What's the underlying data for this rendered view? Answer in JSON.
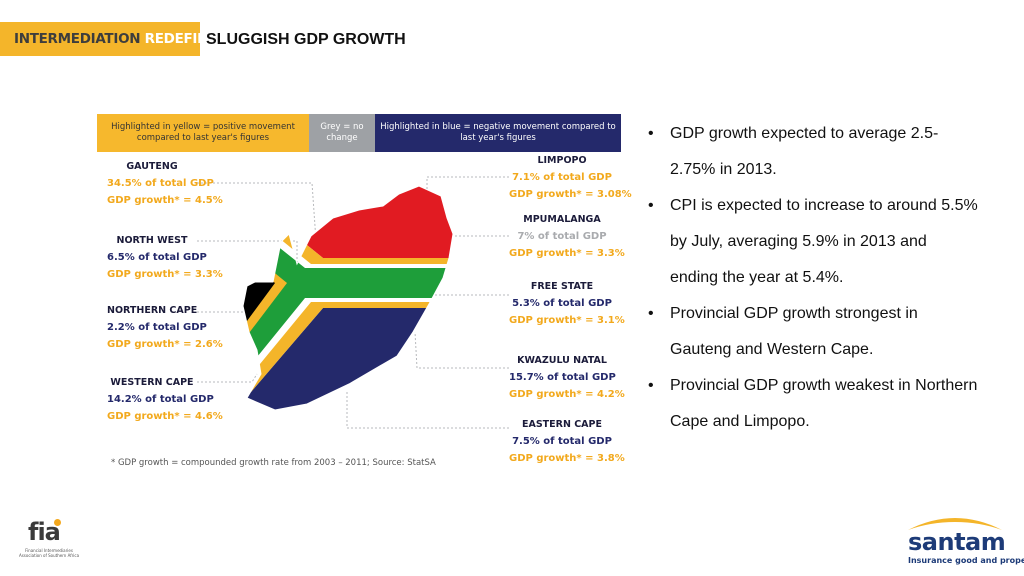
{
  "header": {
    "brand_part1": "INTERMEDIATION",
    "brand_part2": "REDEFINED",
    "title": "SLUGGISH GDP GROWTH"
  },
  "legend": {
    "yellow": "Highlighted in yellow = positive movement compared to last year's figures",
    "grey": "Grey = no change",
    "blue": "Highlighted in blue = negative movement compared to last year's figures"
  },
  "provinces": {
    "gauteng": {
      "name": "GAUTENG",
      "share": "34.5% of total GDP",
      "growth": "GDP growth* = 4.5%"
    },
    "north_west": {
      "name": "NORTH WEST",
      "share": "6.5% of total GDP",
      "growth": "GDP growth* = 3.3%"
    },
    "northern_cape": {
      "name": "NORTHERN CAPE",
      "share": "2.2% of total GDP",
      "growth": "GDP growth* = 2.6%"
    },
    "western_cape": {
      "name": "WESTERN CAPE",
      "share": "14.2% of total GDP",
      "growth": "GDP growth* = 4.6%"
    },
    "limpopo": {
      "name": "LIMPOPO",
      "share": "7.1% of total GDP",
      "growth": "GDP growth* = 3.08%"
    },
    "mpumalanga": {
      "name": "MPUMALANGA",
      "share": "7% of total GDP",
      "growth": "GDP growth* = 3.3%"
    },
    "free_state": {
      "name": "FREE STATE",
      "share": "5.3% of total GDP",
      "growth": "GDP growth* = 3.1%"
    },
    "kwazulu_natal": {
      "name": "KWAZULU NATAL",
      "share": "15.7% of total GDP",
      "growth": "GDP growth* = 4.2%"
    },
    "eastern_cape": {
      "name": "EASTERN CAPE",
      "share": "7.5% of total GDP",
      "growth": "GDP growth* = 3.8%"
    }
  },
  "footnote": "* GDP growth = compounded growth rate from 2003 – 2011; Source: StatSA",
  "bullets": [
    "GDP growth expected to average 2.5-2.75% in 2013.",
    "CPI is expected to increase to around 5.5% by July, averaging 5.9% in 2013 and ending the year at 5.4%.",
    "Provincial GDP growth strongest in Gauteng and Western Cape.",
    "Provincial GDP growth weakest in Northern Cape and Limpopo."
  ],
  "bullet_symbol": "•",
  "logos": {
    "fia_word": "fia",
    "fia_sub": "Financial Intermediaries Association of Southern Africa",
    "santam_word": "santam",
    "santam_tag": "Insurance good and proper"
  },
  "colors": {
    "accent_yellow": "#f4b52a",
    "positive": "#f2a91d",
    "negative": "#24296b",
    "neutral": "#a9abae",
    "flag_red": "#e11b22",
    "flag_green": "#1e9e3a",
    "flag_blue": "#24296b",
    "flag_black": "#000000"
  }
}
